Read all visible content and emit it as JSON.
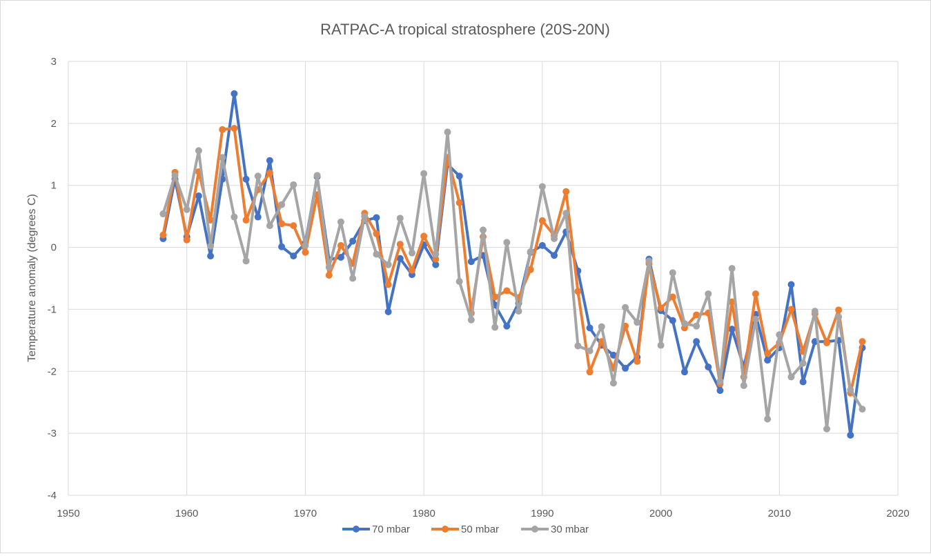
{
  "chart_data": {
    "type": "line",
    "title": "RATPAC-A tropical stratosphere  (20S-20N)",
    "xlabel": "",
    "ylabel": "Temperature anomaly (degrees C)",
    "xlim": [
      1950,
      2020
    ],
    "ylim": [
      -4,
      3
    ],
    "xticks": [
      "1950",
      "1960",
      "1970",
      "1980",
      "1990",
      "2000",
      "2010",
      "2020"
    ],
    "yticks": [
      "3",
      "2",
      "1",
      "0",
      "-1",
      "-2",
      "-3",
      "-4"
    ],
    "grid": true,
    "legend_position": "bottom",
    "x": [
      1958,
      1959,
      1960,
      1961,
      1962,
      1963,
      1964,
      1965,
      1966,
      1967,
      1968,
      1969,
      1970,
      1971,
      1972,
      1973,
      1974,
      1975,
      1976,
      1977,
      1978,
      1979,
      1980,
      1981,
      1982,
      1983,
      1984,
      1985,
      1986,
      1987,
      1988,
      1989,
      1990,
      1991,
      1992,
      1993,
      1994,
      1995,
      1996,
      1997,
      1998,
      1999,
      2000,
      2001,
      2002,
      2003,
      2004,
      2005,
      2006,
      2007,
      2008,
      2009,
      2010,
      2011,
      2012,
      2013,
      2014,
      2015,
      2016,
      2017
    ],
    "series": [
      {
        "name": "70 mbar",
        "color": "#4472c4",
        "values": [
          0.14,
          1.1,
          0.17,
          0.83,
          -0.14,
          1.1,
          2.48,
          1.1,
          0.49,
          1.4,
          0.01,
          -0.14,
          0.07,
          1.14,
          -0.2,
          -0.16,
          0.1,
          0.43,
          0.48,
          -1.04,
          -0.18,
          -0.44,
          0.04,
          -0.28,
          1.34,
          1.15,
          -0.23,
          -0.13,
          -0.93,
          -1.27,
          -0.9,
          -0.08,
          0.03,
          -0.13,
          0.25,
          -0.38,
          -1.3,
          -1.58,
          -1.74,
          -1.95,
          -1.77,
          -0.19,
          -1.02,
          -1.18,
          -2.01,
          -1.52,
          -1.93,
          -2.31,
          -1.32,
          -1.93,
          -1.08,
          -1.82,
          -1.62,
          -0.6,
          -2.17,
          -1.52,
          -1.52,
          -1.5,
          -3.03,
          -1.62
        ]
      },
      {
        "name": "50 mbar",
        "color": "#ed7d31",
        "values": [
          0.2,
          1.21,
          0.12,
          1.22,
          0.44,
          1.9,
          1.92,
          0.44,
          0.93,
          1.2,
          0.38,
          0.35,
          -0.08,
          0.85,
          -0.45,
          0.03,
          -0.26,
          0.55,
          0.22,
          -0.6,
          0.05,
          -0.37,
          0.18,
          -0.19,
          1.45,
          0.72,
          -1.06,
          0.17,
          -0.8,
          -0.7,
          -0.81,
          -0.36,
          0.43,
          0.19,
          0.9,
          -0.71,
          -2.01,
          -1.52,
          -1.95,
          -1.27,
          -1.84,
          -0.26,
          -0.98,
          -0.8,
          -1.3,
          -1.09,
          -1.06,
          -2.2,
          -0.88,
          -2.09,
          -0.75,
          -1.71,
          -1.54,
          -1.0,
          -1.68,
          -1.07,
          -1.54,
          -1.01,
          -2.35,
          -1.52
        ]
      },
      {
        "name": "30 mbar",
        "color": "#a5a5a5",
        "values": [
          0.54,
          1.16,
          0.61,
          1.56,
          0.02,
          1.45,
          0.49,
          -0.22,
          1.15,
          0.35,
          0.69,
          1.01,
          0.03,
          1.16,
          -0.32,
          0.41,
          -0.5,
          0.5,
          -0.11,
          -0.28,
          0.47,
          -0.09,
          1.19,
          -0.11,
          1.86,
          -0.55,
          -1.17,
          0.28,
          -1.29,
          0.08,
          -1.03,
          -0.07,
          0.98,
          0.14,
          0.55,
          -1.59,
          -1.67,
          -1.28,
          -2.19,
          -0.97,
          -1.21,
          -0.22,
          -1.58,
          -0.41,
          -1.23,
          -1.27,
          -0.75,
          -2.16,
          -0.34,
          -2.23,
          -1.16,
          -2.77,
          -1.41,
          -2.09,
          -1.87,
          -1.03,
          -2.93,
          -1.12,
          -2.3,
          -2.61
        ]
      }
    ]
  }
}
